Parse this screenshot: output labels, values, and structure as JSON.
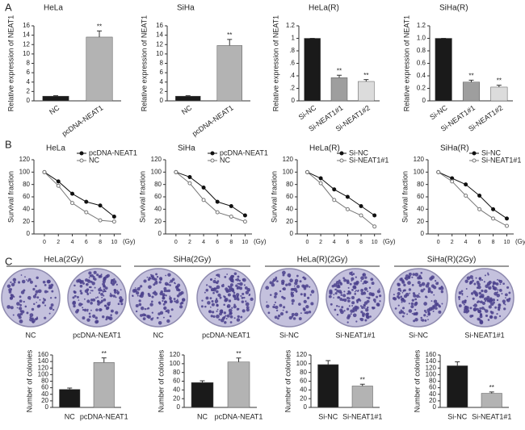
{
  "panel_labels": [
    "A",
    "B",
    "C"
  ],
  "chart_data": [
    {
      "type": "bar",
      "title": "HeLa",
      "ylabel": "Relative expression of NEAT1",
      "categories": [
        "NC",
        "pcDNA-NEAT1"
      ],
      "values": [
        1,
        13.6
      ],
      "errors": [
        0.1,
        1.3
      ],
      "significance": [
        null,
        "**"
      ],
      "colors": [
        "#1a1a1a",
        "#b3b3b3"
      ],
      "ylim": [
        0,
        16
      ],
      "yticks": [
        0,
        2,
        4,
        6,
        8,
        10,
        12,
        14,
        16
      ]
    },
    {
      "type": "bar",
      "title": "SiHa",
      "ylabel": "Relative expression of NEAT1",
      "categories": [
        "NC",
        "pcDNA-NEAT1"
      ],
      "values": [
        1,
        11.8
      ],
      "errors": [
        0.1,
        1.3
      ],
      "significance": [
        null,
        "**"
      ],
      "colors": [
        "#1a1a1a",
        "#b3b3b3"
      ],
      "ylim": [
        0,
        16
      ],
      "yticks": [
        0,
        2,
        4,
        6,
        8,
        10,
        12,
        14,
        16
      ]
    },
    {
      "type": "bar",
      "title": "HeLa(R)",
      "ylabel": "Relative expression of NEAT1",
      "categories": [
        "Si-NC",
        "Si-NEAT1#1",
        "Si-NEAT1#2"
      ],
      "values": [
        1.0,
        0.37,
        0.31
      ],
      "errors": [
        0,
        0.04,
        0.03
      ],
      "significance": [
        null,
        "**",
        "**"
      ],
      "colors": [
        "#1a1a1a",
        "#9e9e9e",
        "#dcdcdc"
      ],
      "ylim": [
        0,
        1.2
      ],
      "yticks": [
        0,
        {
          "value": 0.2,
          "label": ".2"
        },
        {
          "value": 0.4,
          "label": ".4"
        },
        {
          "value": 0.6,
          "label": ".6"
        },
        {
          "value": 0.8,
          "label": ".8"
        },
        1,
        1.2
      ]
    },
    {
      "type": "bar",
      "title": "SiHa(R)",
      "ylabel": "Relative expression of NEAT1",
      "categories": [
        "Si-NC",
        "Si-NEAT1#1",
        "Si-NEAT1#2"
      ],
      "values": [
        1.0,
        0.3,
        0.22
      ],
      "errors": [
        0,
        0.03,
        0.03
      ],
      "significance": [
        null,
        "**",
        "**"
      ],
      "colors": [
        "#1a1a1a",
        "#9e9e9e",
        "#dcdcdc"
      ],
      "ylim": [
        0,
        1.2
      ],
      "yticks": [
        0,
        0.2,
        0.4,
        0.6,
        0.8,
        {
          "value": 1.0,
          "label": "1.0"
        },
        1.2
      ]
    },
    {
      "type": "line",
      "title": "HeLa",
      "ylabel": "Survival fraction",
      "xlabel": "(Gy)",
      "x": [
        0,
        2,
        4,
        6,
        8,
        10
      ],
      "series": [
        {
          "name": "pcDNA-NEAT1",
          "color": "#111111",
          "marker": "filled",
          "values": [
            100,
            85,
            65,
            52,
            46,
            28
          ]
        },
        {
          "name": "NC",
          "color": "#777777",
          "marker": "open",
          "values": [
            100,
            78,
            50,
            35,
            22,
            20
          ]
        }
      ],
      "xlim": [
        -1.5,
        11
      ],
      "xticks": [
        0,
        2,
        4,
        6,
        8,
        10
      ],
      "ylim": [
        0,
        120
      ],
      "yticks": [
        0,
        20,
        40,
        60,
        80,
        100,
        120
      ]
    },
    {
      "type": "line",
      "title": "SiHa",
      "ylabel": "Survival fraction",
      "xlabel": "(Gy)",
      "x": [
        0,
        2,
        4,
        6,
        8,
        10
      ],
      "series": [
        {
          "name": "pcDNA-NEAT1",
          "color": "#111111",
          "marker": "filled",
          "values": [
            100,
            92,
            75,
            52,
            45,
            30
          ]
        },
        {
          "name": "NC",
          "color": "#777777",
          "marker": "open",
          "values": [
            100,
            82,
            55,
            35,
            28,
            20
          ]
        }
      ],
      "xlim": [
        -1.5,
        11
      ],
      "xticks": [
        0,
        2,
        4,
        6,
        8,
        10
      ],
      "ylim": [
        0,
        120
      ],
      "yticks": [
        0,
        20,
        40,
        60,
        80,
        100,
        120
      ]
    },
    {
      "type": "line",
      "title": "HeLa(R)",
      "ylabel": "Survival fraction",
      "xlabel": "(Gy)",
      "x": [
        0,
        2,
        4,
        6,
        8,
        10
      ],
      "series": [
        {
          "name": "Si-NC",
          "color": "#111111",
          "marker": "filled",
          "values": [
            100,
            90,
            72,
            60,
            45,
            30
          ]
        },
        {
          "name": "Si-NEAT1#1",
          "color": "#777777",
          "marker": "open",
          "values": [
            100,
            82,
            55,
            40,
            30,
            12
          ]
        }
      ],
      "xlim": [
        -1.5,
        11
      ],
      "xticks": [
        0,
        2,
        4,
        6,
        8,
        10
      ],
      "ylim": [
        0,
        120
      ],
      "yticks": [
        0,
        20,
        40,
        60,
        80,
        100,
        120
      ]
    },
    {
      "type": "line",
      "title": "SiHa(R)",
      "ylabel": "Survival fraction",
      "xlabel": "(Gy)",
      "x": [
        0,
        2,
        4,
        6,
        8,
        10
      ],
      "series": [
        {
          "name": "Si-NC",
          "color": "#111111",
          "marker": "filled",
          "values": [
            100,
            90,
            80,
            62,
            40,
            25
          ]
        },
        {
          "name": "Si-NEAT1#1",
          "color": "#777777",
          "marker": "open",
          "values": [
            100,
            85,
            62,
            40,
            25,
            13
          ]
        }
      ],
      "xlim": [
        -1.5,
        11
      ],
      "xticks": [
        0,
        2,
        4,
        6,
        8,
        10
      ],
      "ylim": [
        0,
        120
      ],
      "yticks": [
        0,
        20,
        40,
        60,
        80,
        100,
        120
      ]
    },
    {
      "type": "bar",
      "dish_title": "HeLa(2Gy)",
      "dish_labels": [
        "NC",
        "pcDNA-NEAT1"
      ],
      "ylabel": "Number of colonies",
      "categories": [
        "NC",
        "pcDNA-NEAT1"
      ],
      "values": [
        55,
        137
      ],
      "errors": [
        4,
        14
      ],
      "significance": [
        null,
        "**"
      ],
      "colors": [
        "#1a1a1a",
        "#b3b3b3"
      ],
      "ylim": [
        0,
        160
      ],
      "yticks": [
        0,
        20,
        40,
        60,
        80,
        100,
        120,
        140,
        160
      ]
    },
    {
      "type": "bar",
      "dish_title": "SiHa(2Gy)",
      "dish_labels": [
        "NC",
        "pcDNA-NEAT1"
      ],
      "ylabel": "Number of colonies",
      "categories": [
        "NC",
        "pcDNA-NEAT1"
      ],
      "values": [
        57,
        104
      ],
      "errors": [
        4,
        9
      ],
      "significance": [
        null,
        "**"
      ],
      "colors": [
        "#1a1a1a",
        "#b3b3b3"
      ],
      "ylim": [
        0,
        120
      ],
      "yticks": [
        0,
        20,
        40,
        60,
        80,
        100,
        120
      ]
    },
    {
      "type": "bar",
      "dish_title": "HeLa(R)(2Gy)",
      "dish_labels": [
        "Si-NC",
        "Si-NEAT1#1"
      ],
      "ylabel": "Number of colonies",
      "categories": [
        "Si-NC",
        "Si-NEAT1#1"
      ],
      "values": [
        98,
        49
      ],
      "errors": [
        9,
        4
      ],
      "significance": [
        null,
        "**"
      ],
      "colors": [
        "#1a1a1a",
        "#b3b3b3"
      ],
      "ylim": [
        0,
        120
      ],
      "yticks": [
        0,
        20,
        40,
        60,
        80,
        100,
        120
      ]
    },
    {
      "type": "bar",
      "dish_title": "SiHa(R)(2Gy)",
      "dish_labels": [
        "Si-NC",
        "Si-NEAT1#1"
      ],
      "ylabel": "Number of colonies",
      "categories": [
        "Si-NC",
        "Si-NEAT1#1"
      ],
      "values": [
        127,
        43
      ],
      "errors": [
        12,
        4
      ],
      "significance": [
        null,
        "**"
      ],
      "colors": [
        "#1a1a1a",
        "#b3b3b3"
      ],
      "ylim": [
        0,
        160
      ],
      "yticks": [
        0,
        20,
        40,
        60,
        80,
        100,
        120,
        140,
        160
      ]
    }
  ]
}
